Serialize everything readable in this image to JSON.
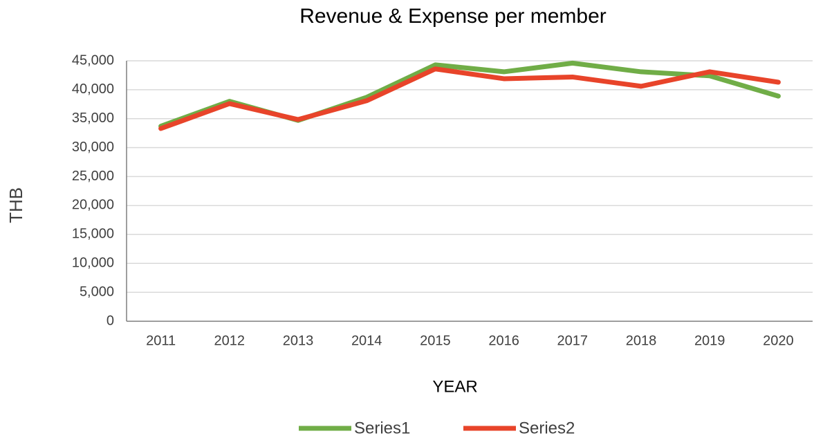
{
  "chart_data": {
    "type": "line",
    "title": "Revenue & Expense per member",
    "x_label": "YEAR",
    "y_label": "THB",
    "categories": [
      "2011",
      "2012",
      "2013",
      "2014",
      "2015",
      "2016",
      "2017",
      "2018",
      "2019",
      "2020"
    ],
    "series": [
      {
        "name": "Series1",
        "color": "#70ad47",
        "values": [
          33700,
          38000,
          34700,
          38700,
          44300,
          43100,
          44600,
          43100,
          42400,
          38900
        ]
      },
      {
        "name": "Series2",
        "color": "#e8442a",
        "values": [
          33300,
          37600,
          34850,
          38100,
          43600,
          41900,
          42200,
          40600,
          43100,
          41300
        ]
      }
    ],
    "ylim": [
      0,
      45000
    ],
    "yticks": [
      0,
      {
        "value": 5000,
        "label": "5,000"
      },
      {
        "value": 10000,
        "label": "10,000"
      },
      {
        "value": 15000,
        "label": "15,000"
      },
      {
        "value": 20000,
        "label": "20,000"
      },
      {
        "value": 25000,
        "label": "25,000"
      },
      {
        "value": 30000,
        "label": "30,000"
      },
      {
        "value": 35000,
        "label": "35,000"
      },
      {
        "value": 40000,
        "label": "40,000"
      },
      {
        "value": 45000,
        "label": "45,000"
      }
    ],
    "grid": true,
    "legend": "bottom"
  }
}
